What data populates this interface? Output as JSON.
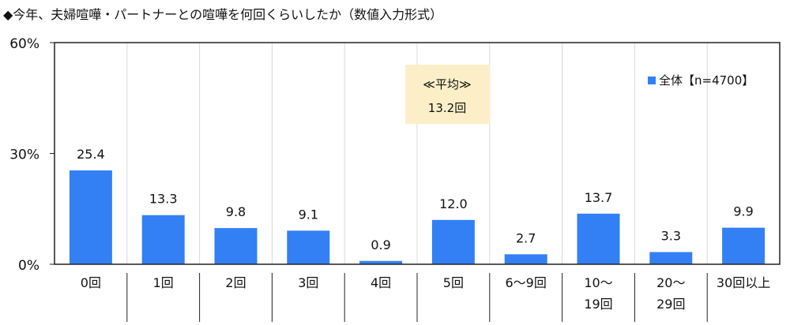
{
  "chart_data": {
    "type": "bar",
    "title": "◆今年、夫婦喧嘩・パートナーとの喧嘩を何回くらいしたか（数値入力形式）",
    "categories": [
      [
        "0回"
      ],
      [
        "1回"
      ],
      [
        "2回"
      ],
      [
        "3回"
      ],
      [
        "4回"
      ],
      [
        "5回"
      ],
      [
        "6～9回"
      ],
      [
        "10～",
        "19回"
      ],
      [
        "20～",
        "29回"
      ],
      [
        "30回以上"
      ]
    ],
    "series": [
      {
        "name": "全体【n=4700】",
        "values": [
          25.4,
          13.3,
          9.8,
          9.1,
          0.9,
          12.0,
          2.7,
          13.7,
          3.3,
          9.9
        ],
        "color": "#3380f5"
      }
    ],
    "value_labels": [
      "25.4",
      "13.3",
      "9.8",
      "9.1",
      "0.9",
      "12.0",
      "2.7",
      "13.7",
      "3.3",
      "9.9"
    ],
    "ylim": [
      0,
      60
    ],
    "yticks": [
      0,
      30,
      60
    ],
    "ytick_labels": [
      "0%",
      "30%",
      "60%"
    ],
    "xlabel": "",
    "ylabel": "",
    "grid": "vertical category separators",
    "legend_position": "top-right",
    "annotation": {
      "line1": "≪平均≫",
      "line2": "13.2回",
      "bg": "#fcefc7"
    }
  }
}
